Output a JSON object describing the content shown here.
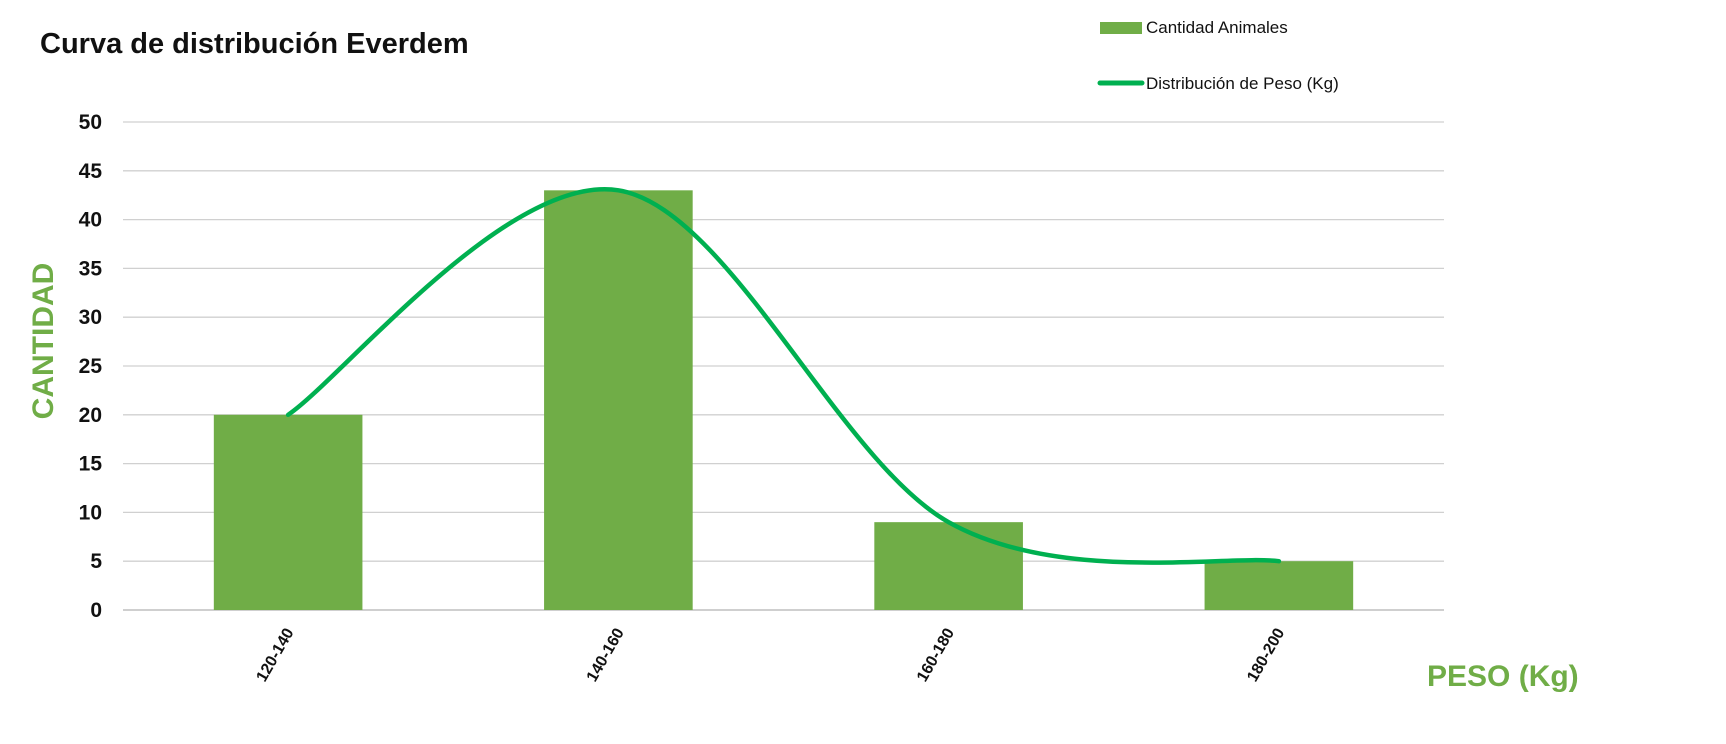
{
  "chart_data": {
    "type": "bar",
    "title": "Curva de distribución Everdem",
    "xlabel": "PESO (Kg)",
    "ylabel": "CANTIDAD",
    "categories": [
      "120-140",
      "140-160",
      "160-180",
      "180-200"
    ],
    "series": [
      {
        "name": "Cantidad Animales",
        "type": "bar",
        "values": [
          20,
          43,
          9,
          5
        ],
        "color": "#70ad47"
      },
      {
        "name": "Distribución de Peso (Kg)",
        "type": "line",
        "smooth": true,
        "values": [
          20,
          43,
          9,
          5
        ],
        "color": "#00b050"
      }
    ],
    "ylim": [
      0,
      50
    ],
    "yticks": [
      0,
      5,
      10,
      15,
      20,
      25,
      30,
      35,
      40,
      45,
      50
    ],
    "grid": true,
    "legend_position": "top-right",
    "axis_label_color": "#70ad47"
  }
}
